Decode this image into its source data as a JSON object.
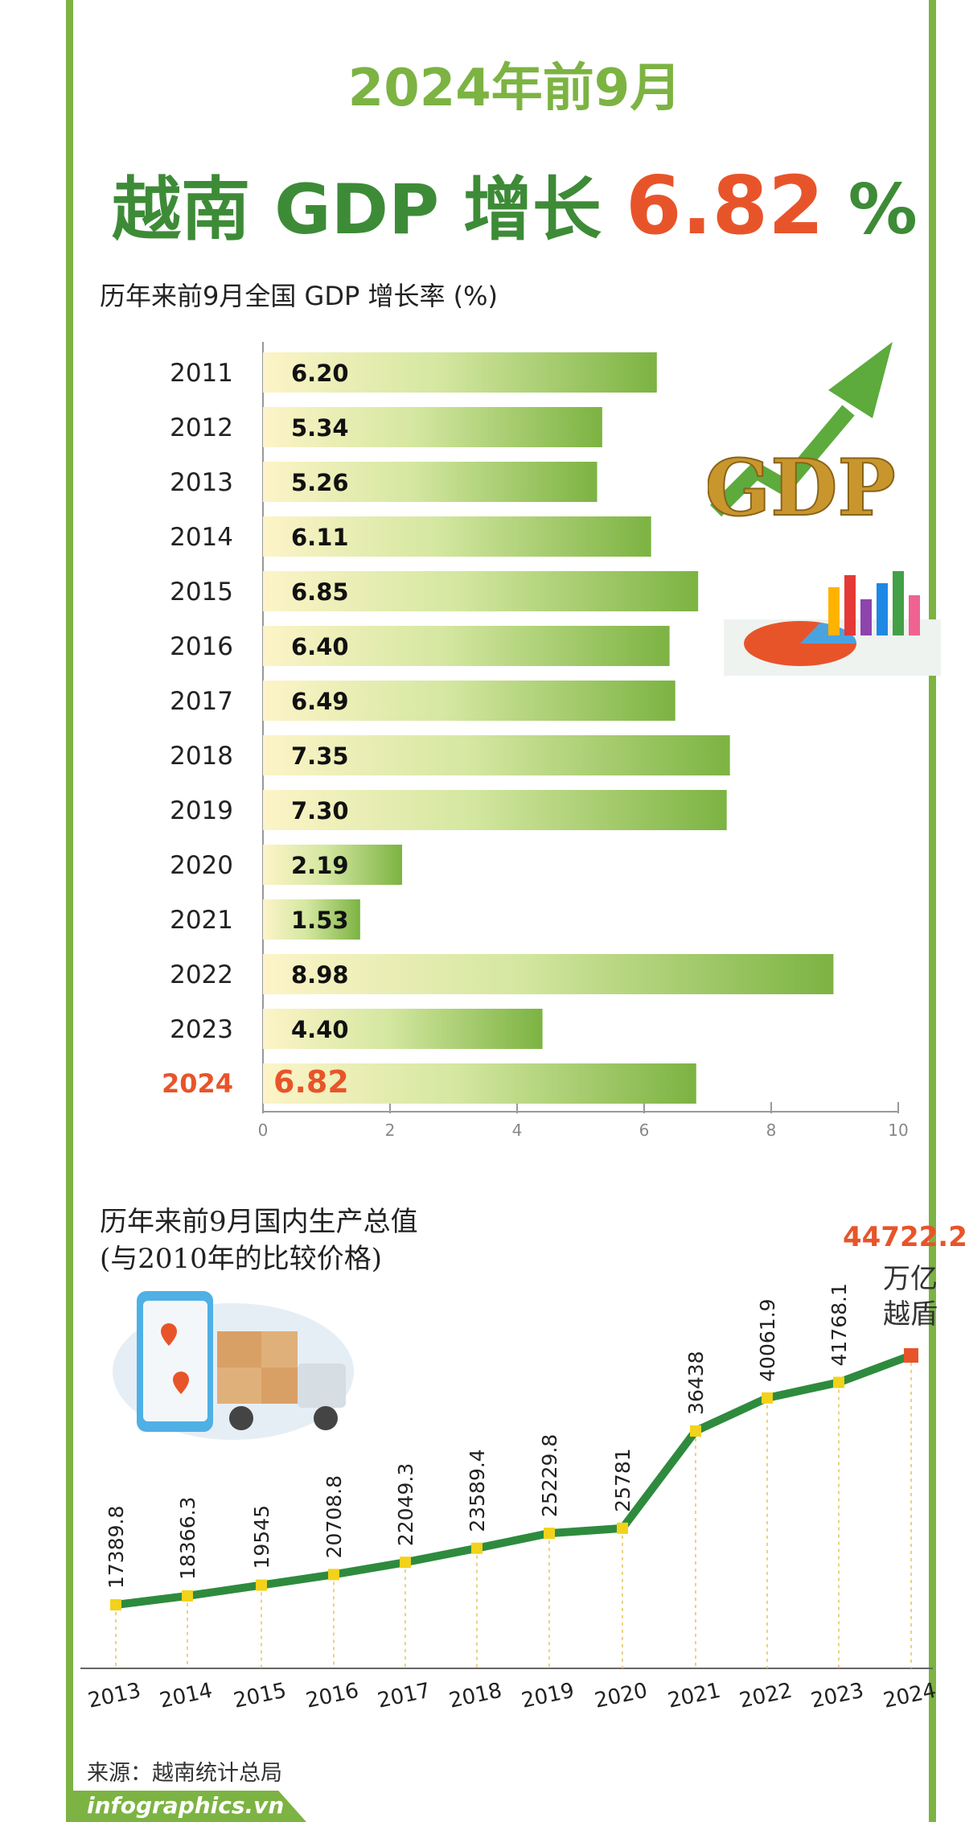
{
  "header": {
    "title_line1": "2024年前9月",
    "title_line2_prefix": "越南 GDP 增长 ",
    "title_line2_value": "6.82",
    "title_line2_suffix": " %"
  },
  "colors": {
    "green_dark": "#3d8b37",
    "green_light": "#7cb342",
    "orange": "#e8542a",
    "line": "#2e8b3e",
    "marker": "#f2d21b"
  },
  "chart_data": [
    {
      "type": "bar",
      "title": "历年来前9月全国 GDP 增长率 (%)",
      "categories": [
        "2011",
        "2012",
        "2013",
        "2014",
        "2015",
        "2016",
        "2017",
        "2018",
        "2019",
        "2020",
        "2021",
        "2022",
        "2023",
        "2024"
      ],
      "values": [
        6.2,
        5.34,
        5.26,
        6.11,
        6.85,
        6.4,
        6.49,
        7.35,
        7.3,
        2.19,
        1.53,
        8.98,
        4.4,
        6.82
      ],
      "value_labels": [
        "6.20",
        "5.34",
        "5.26",
        "6.11",
        "6.85",
        "6.40",
        "6.49",
        "7.35",
        "7.30",
        "2.19",
        "1.53",
        "8.98",
        "4.40",
        "6.82"
      ],
      "xlim": [
        0,
        10
      ],
      "xticks": [
        "0",
        "2",
        "4",
        "6",
        "8",
        "10"
      ],
      "highlight": "2024",
      "orientation": "horizontal"
    },
    {
      "type": "line",
      "title": "历年来前9月国内生产总值",
      "subtitle": "(与2010年的比较价格)",
      "x": [
        "2013",
        "2014",
        "2015",
        "2016",
        "2017",
        "2018",
        "2019",
        "2020",
        "2021",
        "2022",
        "2023",
        "2024"
      ],
      "values": [
        17389.8,
        18366.3,
        19545,
        20708.8,
        22049.3,
        23589.4,
        25229.8,
        25781,
        36438,
        40061.9,
        41768.1,
        44722.2
      ],
      "value_labels": [
        "17389.8",
        "18366.3",
        "19545",
        "20708.8",
        "22049.3",
        "23589.4",
        "25229.8",
        "25781",
        "36438",
        "40061.9",
        "41768.1",
        "44722.2"
      ],
      "unit_line1": "万亿",
      "unit_line2": "越盾"
    }
  ],
  "icons": [
    "gdp-growth-icon",
    "pie-bar-chart-icon",
    "phone-map-delivery-icon"
  ],
  "source": "来源：越南统计总局",
  "footer": "infographics.vn"
}
